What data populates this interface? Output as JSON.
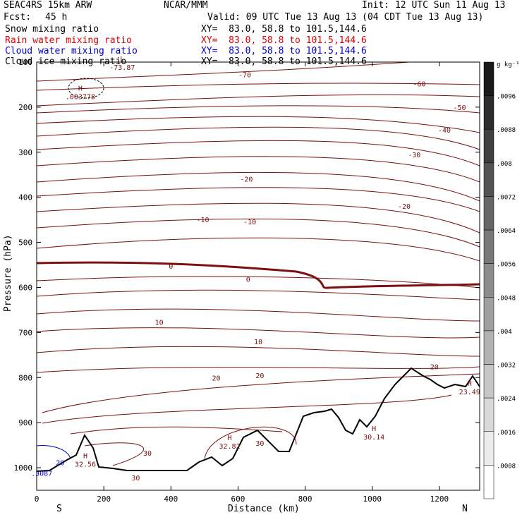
{
  "header": {
    "model": "SEAC4RS 15km ARW",
    "org": "NCAR/MMM",
    "init": "Init: 12 UTC Sun 11 Aug 13",
    "fcst_label": "Fcst:",
    "fcst_value": "45 h",
    "valid": "Valid: 09 UTC Tue 13 Aug 13 (04 CDT Tue 13 Aug 13)",
    "fields": [
      {
        "name": "Snow mixing ratio",
        "xy": "XY=  83.0, 58.8 to 101.5,144.6",
        "color": "#000000"
      },
      {
        "name": "Rain water mixing ratio",
        "xy": "XY=  83.0, 58.8 to 101.5,144.6",
        "color": "#e00000"
      },
      {
        "name": "Cloud water mixing ratio",
        "xy": "XY=  83.0, 58.8 to 101.5,144.6",
        "color": "#0000c8"
      },
      {
        "name": "Cloud ice mixing ratio",
        "xy": "XY=  83.0, 58.8 to 101.5,144.6",
        "color": "#000000"
      }
    ]
  },
  "chart_data": {
    "type": "line",
    "xlabel": "Distance (km)",
    "ylabel": "Pressure (hPa)",
    "xlim": [
      0,
      1320
    ],
    "ylim": [
      100,
      1050
    ],
    "x_ticks": [
      0,
      200,
      400,
      600,
      800,
      1000,
      1200
    ],
    "y_ticks": [
      100,
      200,
      300,
      400,
      500,
      600,
      700,
      800,
      900,
      1000
    ],
    "y_tick_labels": [
      "100",
      "200",
      "300",
      "400",
      "500",
      "600",
      "700",
      "800",
      "900",
      "1000"
    ],
    "x_end_labels": {
      "left": "S",
      "right": "N"
    },
    "contour_color": "#7a1010",
    "contour_labels": [
      {
        "text": "-70",
        "x": 620,
        "p": 127
      },
      {
        "text": "-60",
        "x": 1140,
        "p": 148
      },
      {
        "text": "-50",
        "x": 1260,
        "p": 200
      },
      {
        "text": "-40",
        "x": 1215,
        "p": 250
      },
      {
        "text": "-30",
        "x": 1125,
        "p": 305
      },
      {
        "text": "-20",
        "x": 625,
        "p": 359
      },
      {
        "text": "-20",
        "x": 1095,
        "p": 419
      },
      {
        "text": "-10",
        "x": 495,
        "p": 449
      },
      {
        "text": "-10",
        "x": 635,
        "p": 454
      },
      {
        "text": "0",
        "x": 400,
        "p": 552
      },
      {
        "text": "0",
        "x": 630,
        "p": 581
      },
      {
        "text": "10",
        "x": 365,
        "p": 677
      },
      {
        "text": "10",
        "x": 660,
        "p": 720
      },
      {
        "text": "20",
        "x": 535,
        "p": 800
      },
      {
        "text": "20",
        "x": 665,
        "p": 795
      },
      {
        "text": "20",
        "x": 1185,
        "p": 775
      },
      {
        "text": "30",
        "x": 330,
        "p": 967
      },
      {
        "text": "30",
        "x": 295,
        "p": 1022
      },
      {
        "text": "30",
        "x": 665,
        "p": 945
      }
    ],
    "extrema": [
      {
        "mark": "L",
        "value": "-73.87",
        "x": 255,
        "p": 105
      },
      {
        "mark": "H",
        "value": ".003778",
        "x": 130,
        "p": 170
      },
      {
        "mark": "H",
        "value": "32.56",
        "x": 145,
        "p": 985
      },
      {
        "mark": "H",
        "value": "32.82",
        "x": 575,
        "p": 945
      },
      {
        "mark": "H",
        "value": "30.14",
        "x": 1005,
        "p": 925
      },
      {
        "mark": "H",
        "value": "23.49",
        "x": 1290,
        "p": 825
      }
    ],
    "cloud_water_labels": [
      {
        "text": "20",
        "x": 70,
        "p": 988
      },
      {
        "text": ".3087",
        "x": 15,
        "p": 1012
      }
    ],
    "colorbar": {
      "unit": "g kg⁻¹",
      "ticks": [
        ".0096",
        ".0088",
        ".008",
        ".0072",
        ".0064",
        ".0056",
        ".0048",
        ".004",
        ".0032",
        ".0024",
        ".0016",
        ".0008"
      ]
    }
  }
}
